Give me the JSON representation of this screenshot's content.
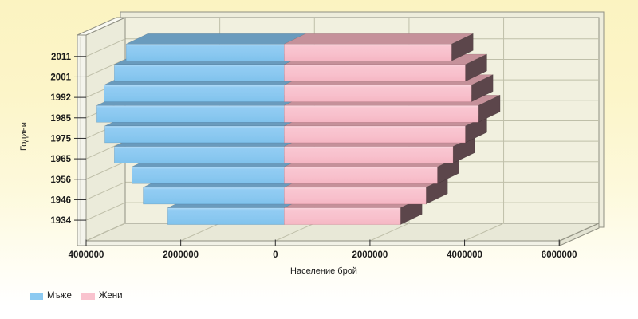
{
  "chart_data": {
    "type": "bar",
    "variant": "3d-horizontal-diverging",
    "title": "",
    "categories": [
      "2011",
      "2001",
      "1992",
      "1985",
      "1975",
      "1965",
      "1956",
      "1946",
      "1934"
    ],
    "series": [
      {
        "name": "Мъже",
        "direction": "left",
        "color": "#8CCAF1",
        "top_color": "#6A9BBD",
        "side_color": "#5B747F",
        "values": [
          3340000,
          3590000,
          3810000,
          3960000,
          3790000,
          3590000,
          3220000,
          2980000,
          2460000
        ]
      },
      {
        "name": "Жени",
        "direction": "right",
        "color": "#F9C3CE",
        "top_color": "#C5919A",
        "side_color": "#5C464B",
        "values": [
          3540000,
          3830000,
          3960000,
          4110000,
          3830000,
          3570000,
          3240000,
          3000000,
          2460000
        ]
      }
    ],
    "xlabel": "Население брой",
    "ylabel": "Години",
    "xlim": [
      -4000000,
      6000000
    ],
    "x_ticks": {
      "values": [
        -4000000,
        -2000000,
        0,
        2000000,
        4000000,
        6000000
      ],
      "labels": [
        "4000000",
        "2000000",
        "0",
        "2000000",
        "4000000",
        "6000000"
      ]
    },
    "grid": true,
    "legend": {
      "position": "bottom-left",
      "items": [
        "Мъже",
        "Жени"
      ]
    }
  },
  "colors": {
    "background_top": "#FBF3C1",
    "background_bottom": "#FFFFFF",
    "back_wall": "#F1F0DF",
    "wall_frame": "#EEEDDC",
    "left_wall": "#EBEBDA",
    "floor": "#E8E8D7",
    "gridline": "#BFBFA9",
    "wall_outline": "#8F8F82",
    "tick": "#2A2A2A",
    "text": "#1A1A1A"
  }
}
